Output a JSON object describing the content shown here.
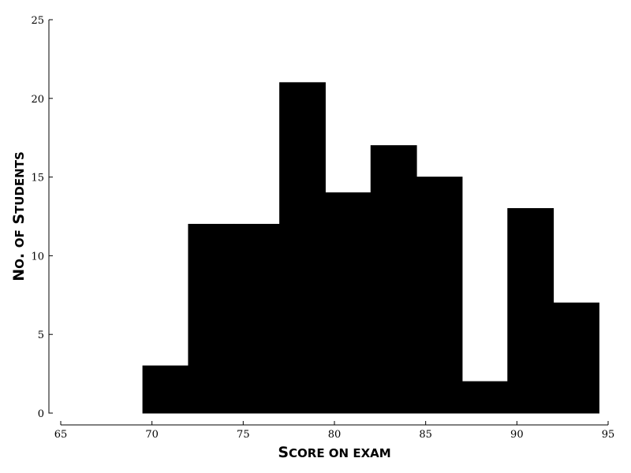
{
  "chart_data": {
    "type": "bar",
    "bins": [
      {
        "start": 69.5,
        "end": 72.0,
        "value": 3
      },
      {
        "start": 72.0,
        "end": 74.5,
        "value": 12
      },
      {
        "start": 74.5,
        "end": 77.0,
        "value": 12
      },
      {
        "start": 77.0,
        "end": 79.5,
        "value": 21
      },
      {
        "start": 79.5,
        "end": 82.0,
        "value": 14
      },
      {
        "start": 82.0,
        "end": 84.5,
        "value": 17
      },
      {
        "start": 84.5,
        "end": 87.0,
        "value": 15
      },
      {
        "start": 87.0,
        "end": 89.5,
        "value": 2
      },
      {
        "start": 89.5,
        "end": 92.0,
        "value": 13
      },
      {
        "start": 92.0,
        "end": 94.5,
        "value": 7
      }
    ],
    "xlim": [
      65,
      95
    ],
    "ylim": [
      0,
      25
    ],
    "xticks": [
      65,
      70,
      75,
      80,
      85,
      90,
      95
    ],
    "yticks": [
      0,
      5,
      10,
      15,
      20,
      25
    ],
    "grid": false,
    "colors": {
      "bar": "#000000",
      "axis": "#000000"
    },
    "xlabel_parts": [
      {
        "text": "S",
        "size": "large"
      },
      {
        "text": "CORE ON EXAM",
        "size": "small"
      }
    ],
    "ylabel_parts": [
      {
        "text": "N",
        "size": "large"
      },
      {
        "text": "O",
        "size": "small"
      },
      {
        "text": ". ",
        "size": "large"
      },
      {
        "text": "OF",
        "size": "small"
      },
      {
        "text": " S",
        "size": "large"
      },
      {
        "text": "TUDENTS",
        "size": "small"
      }
    ]
  }
}
